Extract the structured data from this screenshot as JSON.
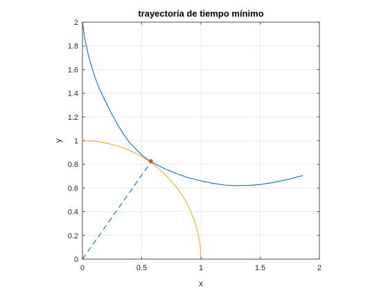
{
  "chart_data": {
    "type": "line",
    "title": "trayectoria de tiempo mínimo",
    "xlabel": "x",
    "ylabel": "y",
    "xlim": [
      0,
      2
    ],
    "ylim": [
      0,
      2
    ],
    "grid": true,
    "xticks": [
      "0",
      "0.5",
      "1",
      "1.5",
      "2"
    ],
    "yticks": [
      "0",
      "0.2",
      "0.4",
      "0.6",
      "0.8",
      "1",
      "1.2",
      "1.4",
      "1.6",
      "1.8",
      "2"
    ],
    "series": [
      {
        "color": "#0072BD",
        "style": "solid",
        "points": [
          [
            0.0,
            2.0
          ],
          [
            0.02,
            1.86
          ],
          [
            0.05,
            1.72
          ],
          [
            0.1,
            1.55
          ],
          [
            0.15,
            1.42
          ],
          [
            0.2,
            1.32
          ],
          [
            0.25,
            1.22
          ],
          [
            0.3,
            1.13
          ],
          [
            0.35,
            1.05
          ],
          [
            0.4,
            0.98
          ],
          [
            0.45,
            0.93
          ],
          [
            0.5,
            0.88
          ],
          [
            0.55,
            0.84
          ],
          [
            0.6,
            0.81
          ],
          [
            0.7,
            0.76
          ],
          [
            0.8,
            0.72
          ],
          [
            0.9,
            0.685
          ],
          [
            1.0,
            0.66
          ],
          [
            1.1,
            0.64
          ],
          [
            1.2,
            0.625
          ],
          [
            1.3,
            0.62
          ],
          [
            1.4,
            0.622
          ],
          [
            1.5,
            0.63
          ],
          [
            1.6,
            0.645
          ],
          [
            1.7,
            0.665
          ],
          [
            1.8,
            0.69
          ],
          [
            1.86,
            0.705
          ]
        ]
      },
      {
        "color": "#EDB120",
        "style": "solid",
        "points": [
          [
            0.0,
            1.0
          ],
          [
            0.1,
            0.995
          ],
          [
            0.2,
            0.98
          ],
          [
            0.3,
            0.954
          ],
          [
            0.4,
            0.917
          ],
          [
            0.5,
            0.866
          ],
          [
            0.577,
            0.817
          ],
          [
            0.6,
            0.8
          ],
          [
            0.7,
            0.714
          ],
          [
            0.8,
            0.6
          ],
          [
            0.85,
            0.527
          ],
          [
            0.9,
            0.436
          ],
          [
            0.95,
            0.312
          ],
          [
            0.98,
            0.199
          ],
          [
            0.995,
            0.1
          ],
          [
            1.0,
            0.0
          ]
        ]
      },
      {
        "color": "#0072BD",
        "style": "dashed",
        "points": [
          [
            0.0,
            0.0
          ],
          [
            0.577,
            0.817
          ]
        ]
      }
    ],
    "markers": [
      {
        "x": 0.577,
        "y": 0.827,
        "color": "#D95319"
      }
    ]
  }
}
